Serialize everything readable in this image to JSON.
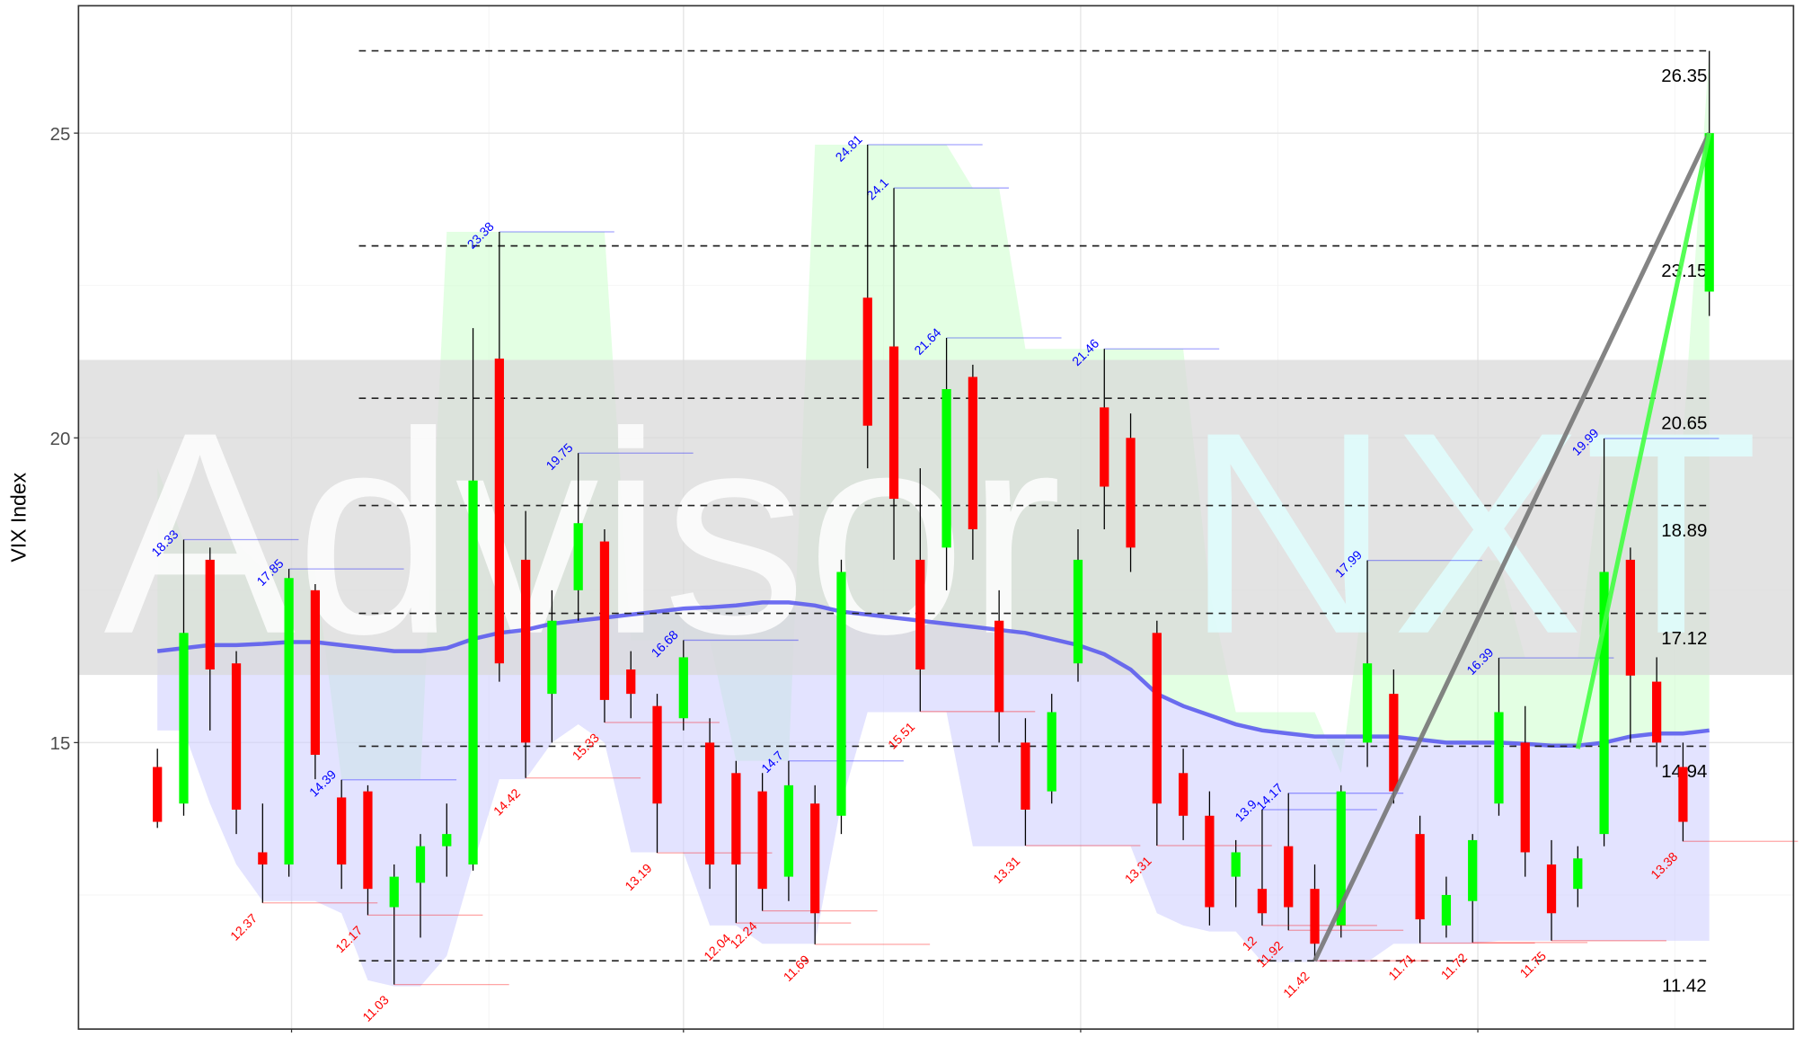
{
  "chart_data": {
    "type": "candlestick",
    "y_label": "VIX Index",
    "watermark": [
      "Advisor",
      "NXT"
    ],
    "xlim": [
      -3,
      62.2
    ],
    "ylim": [
      10.3,
      27.09
    ],
    "yticks": [
      15,
      20,
      25
    ],
    "yminor": [
      12.5,
      17.5,
      22.5
    ],
    "xticks": [
      5.1,
      20,
      35.1,
      50.2
    ],
    "xminor": [
      12.6,
      27.6,
      42.6,
      57.7
    ],
    "grid": true,
    "up_color": "#00ff00",
    "down_color": "#ff0000",
    "open": [
      14.6,
      14.0,
      18.0,
      16.3,
      13.2,
      13.0,
      17.5,
      14.1,
      14.2,
      12.3,
      12.7,
      13.3,
      13.0,
      21.3,
      18.0,
      15.8,
      17.5,
      18.3,
      16.2,
      15.6,
      15.4,
      15.0,
      14.5,
      14.2,
      12.8,
      14.0,
      13.8,
      22.3,
      21.5,
      18.0,
      18.2,
      21.0,
      17.0,
      15.0,
      14.2,
      16.3,
      20.5,
      20.0,
      16.8,
      14.5,
      13.8,
      12.8,
      12.6,
      13.3,
      12.6,
      12.0,
      15.0,
      15.8,
      13.5,
      12.0,
      12.4,
      14.0,
      15.0,
      13.0,
      12.6,
      13.5,
      18.0,
      16.0,
      14.6,
      22.4
    ],
    "high": [
      14.9,
      18.33,
      18.2,
      16.5,
      14.0,
      17.85,
      17.6,
      14.39,
      14.3,
      13.0,
      13.5,
      14.0,
      21.8,
      23.38,
      18.8,
      17.5,
      19.75,
      18.5,
      16.5,
      15.8,
      16.68,
      15.4,
      14.7,
      14.5,
      14.7,
      14.3,
      18.0,
      24.81,
      24.1,
      19.5,
      21.64,
      21.2,
      17.5,
      15.4,
      15.8,
      18.5,
      21.46,
      20.4,
      17.0,
      14.9,
      14.2,
      13.4,
      13.9,
      14.17,
      13.0,
      14.3,
      17.99,
      16.2,
      13.8,
      12.8,
      13.5,
      16.39,
      15.6,
      13.4,
      13.3,
      19.99,
      18.2,
      16.4,
      15.0,
      26.35
    ],
    "low": [
      13.6,
      13.8,
      15.2,
      13.5,
      12.37,
      12.8,
      14.4,
      12.6,
      12.17,
      11.03,
      11.8,
      12.8,
      12.9,
      16.0,
      14.42,
      15.0,
      17.0,
      15.33,
      15.4,
      13.19,
      15.2,
      12.6,
      12.04,
      12.24,
      12.4,
      11.69,
      13.5,
      19.5,
      18.0,
      15.51,
      17.5,
      18.0,
      15.0,
      13.31,
      14.0,
      16.0,
      18.5,
      17.8,
      13.31,
      13.4,
      12.0,
      12.3,
      12.0,
      11.92,
      11.42,
      11.8,
      14.6,
      14.0,
      11.71,
      11.8,
      11.72,
      13.8,
      12.8,
      11.75,
      12.3,
      13.3,
      15.0,
      14.6,
      13.38,
      22.0
    ],
    "close": [
      13.7,
      16.8,
      16.2,
      13.9,
      13.0,
      17.7,
      14.8,
      13.0,
      12.6,
      12.8,
      13.3,
      13.5,
      19.3,
      16.3,
      15.0,
      17.0,
      18.6,
      15.7,
      15.8,
      14.0,
      16.4,
      13.0,
      13.0,
      12.6,
      14.3,
      12.2,
      17.8,
      20.2,
      19.0,
      16.2,
      20.8,
      18.5,
      15.5,
      13.9,
      15.5,
      18.0,
      19.2,
      18.2,
      14.0,
      13.8,
      12.3,
      13.2,
      12.2,
      12.3,
      11.7,
      14.2,
      16.3,
      14.2,
      12.1,
      12.5,
      13.4,
      15.5,
      13.2,
      12.2,
      13.1,
      17.8,
      16.1,
      15.0,
      13.7,
      25.0
    ],
    "ma": {
      "color": "#5555ee",
      "values": [
        16.5,
        16.55,
        16.6,
        16.6,
        16.62,
        16.65,
        16.65,
        16.6,
        16.55,
        16.5,
        16.5,
        16.55,
        16.7,
        16.8,
        16.85,
        16.95,
        17.0,
        17.05,
        17.1,
        17.15,
        17.2,
        17.22,
        17.25,
        17.3,
        17.3,
        17.25,
        17.15,
        17.1,
        17.05,
        17.0,
        16.95,
        16.9,
        16.85,
        16.8,
        16.7,
        16.6,
        16.45,
        16.2,
        15.8,
        15.6,
        15.45,
        15.3,
        15.2,
        15.15,
        15.1,
        15.1,
        15.1,
        15.1,
        15.05,
        15.0,
        15.0,
        15.0,
        14.98,
        14.95,
        14.95,
        15.0,
        15.1,
        15.15,
        15.15,
        15.2
      ]
    },
    "upper": {
      "color": "#ccffcc",
      "values": [
        19.5,
        18.3,
        18.3,
        18.3,
        17.85,
        17.85,
        17.85,
        14.4,
        14.4,
        14.4,
        14.4,
        23.38,
        23.38,
        23.38,
        23.38,
        23.38,
        23.38,
        23.38,
        16.68,
        16.68,
        16.68,
        16.68,
        14.7,
        14.7,
        14.7,
        24.81,
        24.81,
        24.81,
        24.81,
        24.81,
        24.81,
        24.1,
        24.1,
        21.46,
        21.46,
        21.46,
        21.46,
        21.46,
        21.46,
        21.46,
        17.5,
        15.5,
        15.5,
        15.5,
        15.5,
        14.5,
        17.99,
        17.99,
        17.99,
        17.99,
        17.99,
        17.99,
        16.39,
        16.39,
        16.39,
        19.99,
        19.99,
        19.99,
        19.99,
        26.35
      ]
    },
    "lower": {
      "color": "#ccccff",
      "values": [
        15.2,
        15.2,
        14.0,
        13.0,
        12.4,
        12.4,
        12.4,
        12.2,
        11.1,
        11.0,
        11.0,
        11.5,
        13.0,
        14.4,
        14.4,
        15.0,
        15.3,
        15.0,
        13.2,
        13.2,
        13.2,
        12.0,
        12.0,
        11.7,
        11.7,
        11.7,
        14.0,
        15.5,
        15.5,
        15.5,
        15.5,
        13.3,
        13.3,
        13.3,
        13.3,
        13.3,
        13.3,
        13.3,
        12.2,
        12.0,
        11.9,
        11.9,
        11.4,
        11.4,
        11.4,
        11.4,
        11.4,
        11.7,
        11.7,
        11.7,
        11.7,
        11.75,
        11.75,
        11.75,
        11.75,
        11.75,
        11.75,
        11.75,
        11.75,
        11.75
      ]
    },
    "peak_labels": {
      "color": "#0000ff",
      "x": [
        1,
        5,
        7,
        13,
        16,
        20,
        24,
        27,
        28,
        30,
        36,
        42,
        43,
        46,
        51,
        55
      ],
      "values": [
        18.33,
        17.85,
        14.39,
        23.38,
        19.75,
        16.68,
        14.7,
        24.81,
        24.1,
        21.64,
        21.46,
        13.9,
        14.17,
        17.99,
        16.39,
        19.99
      ]
    },
    "trough_labels": {
      "color": "#ff0000",
      "x": [
        4,
        8,
        9,
        14,
        17,
        19,
        22,
        23,
        25,
        29,
        33,
        38,
        42,
        43,
        44,
        48,
        50,
        53,
        58
      ],
      "values": [
        12.37,
        12.17,
        11.03,
        14.42,
        15.33,
        13.19,
        12.04,
        12.24,
        11.69,
        15.51,
        13.31,
        13.31,
        12,
        11.92,
        11.42,
        11.71,
        11.72,
        11.75,
        13.38
      ]
    },
    "levels": [
      26.35,
      23.15,
      20.65,
      18.89,
      17.12,
      14.94,
      11.42
    ],
    "trend_lines": [
      {
        "color": "#777777",
        "x": [
          44,
          59
        ],
        "y": [
          11.42,
          25
        ]
      },
      {
        "color": "#44ff44",
        "x": [
          54,
          59
        ],
        "y": [
          14.9,
          25
        ]
      }
    ]
  }
}
